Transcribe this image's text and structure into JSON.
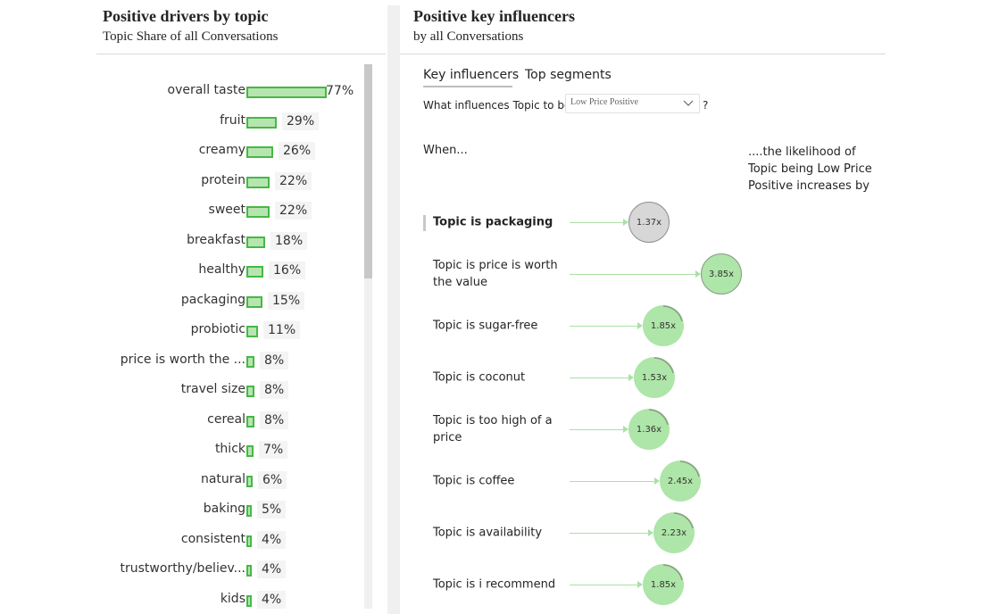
{
  "left": {
    "title": "Positive drivers by topic",
    "subtitle": "Topic Share of all Conversations",
    "items": [
      {
        "label": "overall taste",
        "value": "77%",
        "share": 0.77
      },
      {
        "label": "fruit",
        "value": "29%",
        "share": 0.29
      },
      {
        "label": "creamy",
        "value": "26%",
        "share": 0.26
      },
      {
        "label": "protein",
        "value": "22%",
        "share": 0.22
      },
      {
        "label": "sweet",
        "value": "22%",
        "share": 0.22
      },
      {
        "label": "breakfast",
        "value": "18%",
        "share": 0.18
      },
      {
        "label": "healthy",
        "value": "16%",
        "share": 0.16
      },
      {
        "label": "packaging",
        "value": "15%",
        "share": 0.15
      },
      {
        "label": "probiotic",
        "value": "11%",
        "share": 0.11
      },
      {
        "label": "price is worth the ...",
        "value": "8%",
        "share": 0.08
      },
      {
        "label": "travel size",
        "value": "8%",
        "share": 0.08
      },
      {
        "label": "cereal",
        "value": "8%",
        "share": 0.08
      },
      {
        "label": "thick",
        "value": "7%",
        "share": 0.07
      },
      {
        "label": "natural",
        "value": "6%",
        "share": 0.06
      },
      {
        "label": "baking",
        "value": "5%",
        "share": 0.05
      },
      {
        "label": "consistent",
        "value": "4%",
        "share": 0.04
      },
      {
        "label": "trustworthy/believ...",
        "value": "4%",
        "share": 0.04
      },
      {
        "label": "kids",
        "value": "4%",
        "share": 0.04
      }
    ]
  },
  "right": {
    "title": "Positive key influencers",
    "subtitle": "by all Conversations",
    "tabs": [
      {
        "label": "Key influencers",
        "active": true
      },
      {
        "label": "Top segments",
        "active": false
      }
    ],
    "question": {
      "prefix": "What influences Topic to be",
      "selected": "Low Price Positive",
      "suffix": "?"
    },
    "when_label": "When...",
    "likelihood_label": "....the likelihood of Topic being Low Price Positive increases by",
    "influencers": [
      {
        "label": "Topic is packaging",
        "multiplier": "1.37x",
        "value": 1.37,
        "selected": true
      },
      {
        "label": "Topic is price is worth the value",
        "multiplier": "3.85x",
        "value": 3.85,
        "selected": false
      },
      {
        "label": "Topic is sugar-free",
        "multiplier": "1.85x",
        "value": 1.85,
        "selected": false
      },
      {
        "label": "Topic is coconut",
        "multiplier": "1.53x",
        "value": 1.53,
        "selected": false
      },
      {
        "label": "Topic is too high of a price",
        "multiplier": "1.36x",
        "value": 1.36,
        "selected": false
      },
      {
        "label": "Topic is coffee",
        "multiplier": "2.45x",
        "value": 2.45,
        "selected": false
      },
      {
        "label": "Topic is availability",
        "multiplier": "2.23x",
        "value": 2.23,
        "selected": false
      },
      {
        "label": "Topic is i recommend",
        "multiplier": "1.85x",
        "value": 1.85,
        "selected": false
      }
    ]
  },
  "colors": {
    "bar_fill": "#b7e5b0",
    "bar_border": "#46b846",
    "bubble": "#aee5a8",
    "bubble_selected": "#d7d7d7",
    "connector": "#a9e1a4"
  }
}
